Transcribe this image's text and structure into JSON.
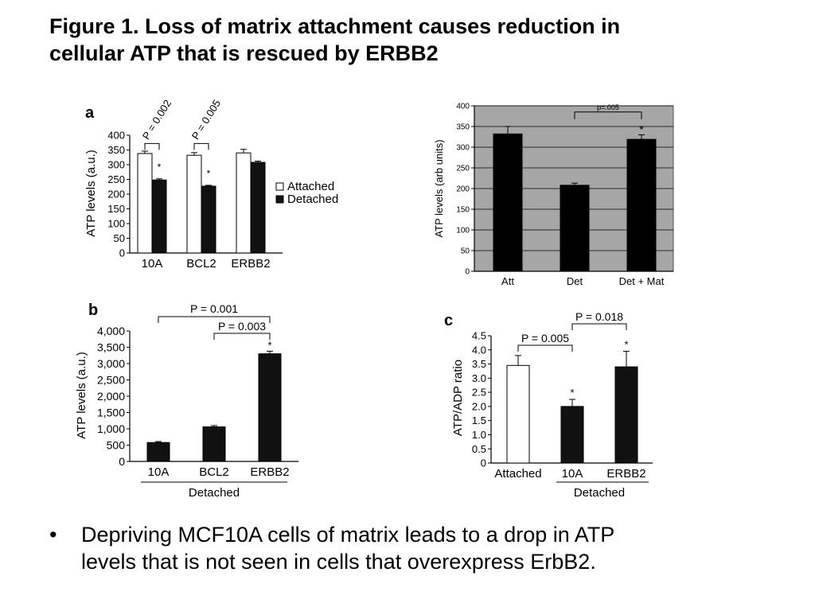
{
  "slide": {
    "title_line1": "Figure 1. Loss of matrix attachment causes reduction in",
    "title_line2": "cellular ATP that is rescued by ERBB2",
    "bullet_symbol": "•",
    "bullet_line1": "Depriving MCF10A cells of matrix leads to a drop in ATP",
    "bullet_line2": "levels that is not seen in cells that overexpress ErbB2."
  },
  "chart_data": [
    {
      "panel": "a",
      "type": "bar",
      "ylabel": "ATP levels (a.u.)",
      "ylim": [
        0,
        400
      ],
      "yticks": [
        "0",
        "50",
        "100",
        "150",
        "200",
        "250",
        "300",
        "350",
        "400"
      ],
      "categories": [
        "10A",
        "BCL2",
        "ERBB2"
      ],
      "series": [
        {
          "name": "Attached",
          "color": "#ffffff",
          "values": [
            338,
            332,
            340
          ],
          "errors": [
            8,
            9,
            12
          ]
        },
        {
          "name": "Detached",
          "color": "#111111",
          "values": [
            248,
            227,
            308
          ],
          "errors": [
            4,
            3,
            4
          ]
        }
      ],
      "stars": [
        "*",
        "*",
        ""
      ],
      "brackets": [
        {
          "text": "P = 0.002",
          "category": "10A"
        },
        {
          "text": "P = 0.005",
          "category": "BCL2"
        }
      ],
      "legend": "right"
    },
    {
      "panel": "top-right",
      "type": "bar",
      "ylabel": "ATP levels (arb units)",
      "ylim": [
        0,
        400
      ],
      "yticks": [
        "0",
        "50",
        "100",
        "150",
        "200",
        "250",
        "300",
        "350",
        "400"
      ],
      "categories": [
        "Att",
        "Det",
        "Det + Mat"
      ],
      "values": [
        332,
        208,
        319
      ],
      "errors": [
        18,
        5,
        11
      ],
      "bracket": {
        "text": "p=.005",
        "from": "Det",
        "to": "Det + Mat"
      },
      "stars": [
        "",
        "",
        "*"
      ],
      "grid": true,
      "plot_bg": "#a6a6a6"
    },
    {
      "panel": "b",
      "type": "bar",
      "ylabel": "ATP levels (a.u.)",
      "ylim": [
        0,
        4000
      ],
      "yticks": [
        "0",
        "500",
        "1,000",
        "1,500",
        "2,000",
        "2,500",
        "3,000",
        "3,500",
        "4,000"
      ],
      "categories": [
        "10A",
        "BCL2",
        "ERBB2"
      ],
      "values": [
        580,
        1060,
        3300
      ],
      "errors": [
        30,
        40,
        80
      ],
      "group_label": "Detached",
      "brackets": [
        {
          "text": "P = 0.001",
          "from": "10A",
          "to": "ERBB2"
        },
        {
          "text": "P = 0.003",
          "from": "BCL2",
          "to": "ERBB2"
        }
      ],
      "stars": [
        "",
        "",
        "*"
      ]
    },
    {
      "panel": "c",
      "type": "bar",
      "ylabel": "ATP/ADP ratio",
      "ylim": [
        0,
        4.5
      ],
      "yticks": [
        "0",
        "0.5",
        "1.0",
        "1.5",
        "2.0",
        "2.5",
        "3.0",
        "3.5",
        "4.0",
        "4.5"
      ],
      "categories": [
        "Attached",
        "10A",
        "ERBB2"
      ],
      "values": [
        3.45,
        2.0,
        3.4
      ],
      "errors": [
        0.35,
        0.25,
        0.55
      ],
      "colors": [
        "#ffffff",
        "#111111",
        "#111111"
      ],
      "group_label": "Detached",
      "brackets": [
        {
          "text": "P = 0.005",
          "from": "Attached",
          "to": "10A"
        },
        {
          "text": "P = 0.018",
          "from": "10A",
          "to": "ERBB2"
        }
      ],
      "stars": [
        "",
        "*",
        "*"
      ]
    }
  ]
}
